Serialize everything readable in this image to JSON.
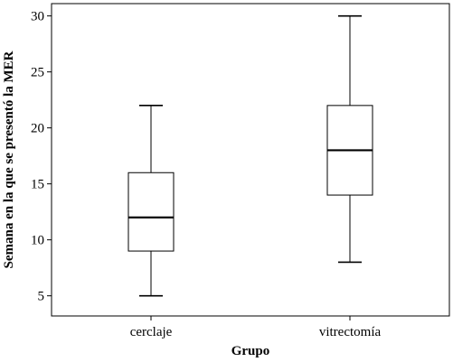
{
  "chart_data": {
    "type": "boxplot",
    "xlabel": "Grupo",
    "ylabel": "Semana en la que se presentó la MER",
    "ylim": [
      3.2,
      31.1
    ],
    "yticks": [
      5,
      10,
      15,
      20,
      25,
      30
    ],
    "grid": false,
    "categories": [
      "cerclaje",
      "vitrectomía"
    ],
    "boxes": [
      {
        "category": "cerclaje",
        "min": 5,
        "q1": 9,
        "median": 12,
        "q3": 16,
        "max": 22
      },
      {
        "category": "vitrectomía",
        "min": 8,
        "q1": 14,
        "median": 18,
        "q3": 22,
        "max": 30
      }
    ]
  }
}
